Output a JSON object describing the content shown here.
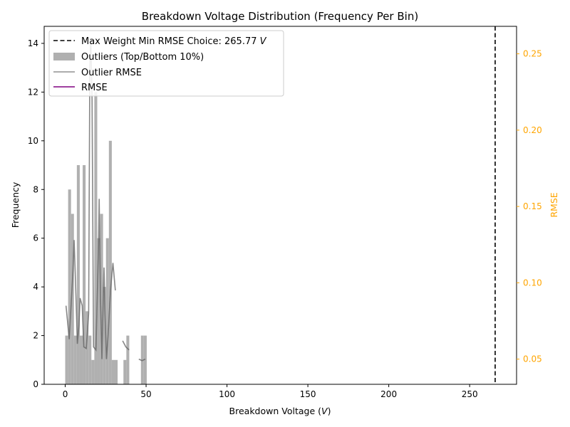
{
  "chart_data": {
    "type": "bar",
    "title": "Breakdown Voltage Distribution (Frequency Per Bin)",
    "xlabel_prefix": "Breakdown Voltage (",
    "xlabel_var": "V",
    "xlabel_suffix": ")",
    "ylabel": "Frequency",
    "y2label": "RMSE",
    "xlim": [
      -13,
      279
    ],
    "ylim": [
      0,
      14.7
    ],
    "y2lim": [
      0.0335,
      0.268
    ],
    "xticks": [
      0,
      50,
      100,
      150,
      200,
      250
    ],
    "yticks": [
      0,
      2,
      4,
      6,
      8,
      10,
      12,
      14
    ],
    "y2ticks": [
      "0.05",
      "0.10",
      "0.15",
      "0.20",
      "0.25"
    ],
    "grid": false,
    "legend_position": "top-left",
    "colors": {
      "outlier_bar": "#b0b0b0",
      "outlier_rmse": "#909090",
      "rmse": "#800080",
      "vline": "#000000",
      "right_axis": "#ffa500"
    },
    "legend": [
      {
        "key": "vline",
        "label": "Max Weight Min RMSE Choice: 265.77 ",
        "italic_suffix": "V"
      },
      {
        "key": "bars",
        "label": "Outliers (Top/Bottom 10%)"
      },
      {
        "key": "outlier_rmse",
        "label": "Outlier RMSE"
      },
      {
        "key": "rmse",
        "label": "RMSE"
      }
    ],
    "vline_x": 265.77,
    "bar_width": 1.8,
    "bars": [
      {
        "x": 0.9,
        "value": 2
      },
      {
        "x": 2.7,
        "value": 8
      },
      {
        "x": 4.5,
        "value": 7
      },
      {
        "x": 6.3,
        "value": 2
      },
      {
        "x": 8.1,
        "value": 9
      },
      {
        "x": 9.9,
        "value": 2
      },
      {
        "x": 11.7,
        "value": 9
      },
      {
        "x": 13.5,
        "value": 3
      },
      {
        "x": 15.3,
        "value": 2
      },
      {
        "x": 17.1,
        "value": 1
      },
      {
        "x": 18.9,
        "value": 12
      },
      {
        "x": 20.7,
        "value": 6
      },
      {
        "x": 22.5,
        "value": 7
      },
      {
        "x": 24.3,
        "value": 4
      },
      {
        "x": 26.1,
        "value": 6
      },
      {
        "x": 27.9,
        "value": 10
      },
      {
        "x": 29.7,
        "value": 1
      },
      {
        "x": 31.5,
        "value": 1
      },
      {
        "x": 36.9,
        "value": 1
      },
      {
        "x": 38.7,
        "value": 2
      },
      {
        "x": 47.7,
        "value": 2
      },
      {
        "x": 49.5,
        "value": 2
      }
    ],
    "outlier_rmse_segments": [
      [
        [
          0.5,
          0.085
        ],
        [
          2.5,
          0.063
        ],
        [
          4.8,
          0.108
        ],
        [
          5.5,
          0.128
        ],
        [
          6.4,
          0.1
        ],
        [
          7.5,
          0.06
        ],
        [
          8.5,
          0.072
        ],
        [
          9.2,
          0.09
        ],
        [
          10.5,
          0.085
        ],
        [
          11.5,
          0.058
        ],
        [
          13.0,
          0.057
        ],
        [
          14.5,
          0.08
        ],
        [
          15.2,
          0.24
        ],
        [
          15.8,
          0.26
        ],
        [
          16.6,
          0.22
        ],
        [
          17.5,
          0.058
        ],
        [
          19.0,
          0.056
        ],
        [
          20.6,
          0.125
        ],
        [
          21.0,
          0.155
        ],
        [
          21.8,
          0.09
        ],
        [
          22.7,
          0.05
        ],
        [
          23.5,
          0.09
        ],
        [
          24.0,
          0.11
        ],
        [
          24.6,
          0.08
        ],
        [
          25.5,
          0.05
        ],
        [
          26.5,
          0.065
        ],
        [
          28.0,
          0.095
        ],
        [
          29.5,
          0.113
        ],
        [
          31.0,
          0.095
        ]
      ],
      [
        [
          35.5,
          0.062
        ],
        [
          37.5,
          0.058
        ],
        [
          39.5,
          0.056
        ]
      ],
      [
        [
          45.5,
          0.05
        ],
        [
          47.5,
          0.049
        ],
        [
          49.5,
          0.05
        ]
      ]
    ]
  }
}
